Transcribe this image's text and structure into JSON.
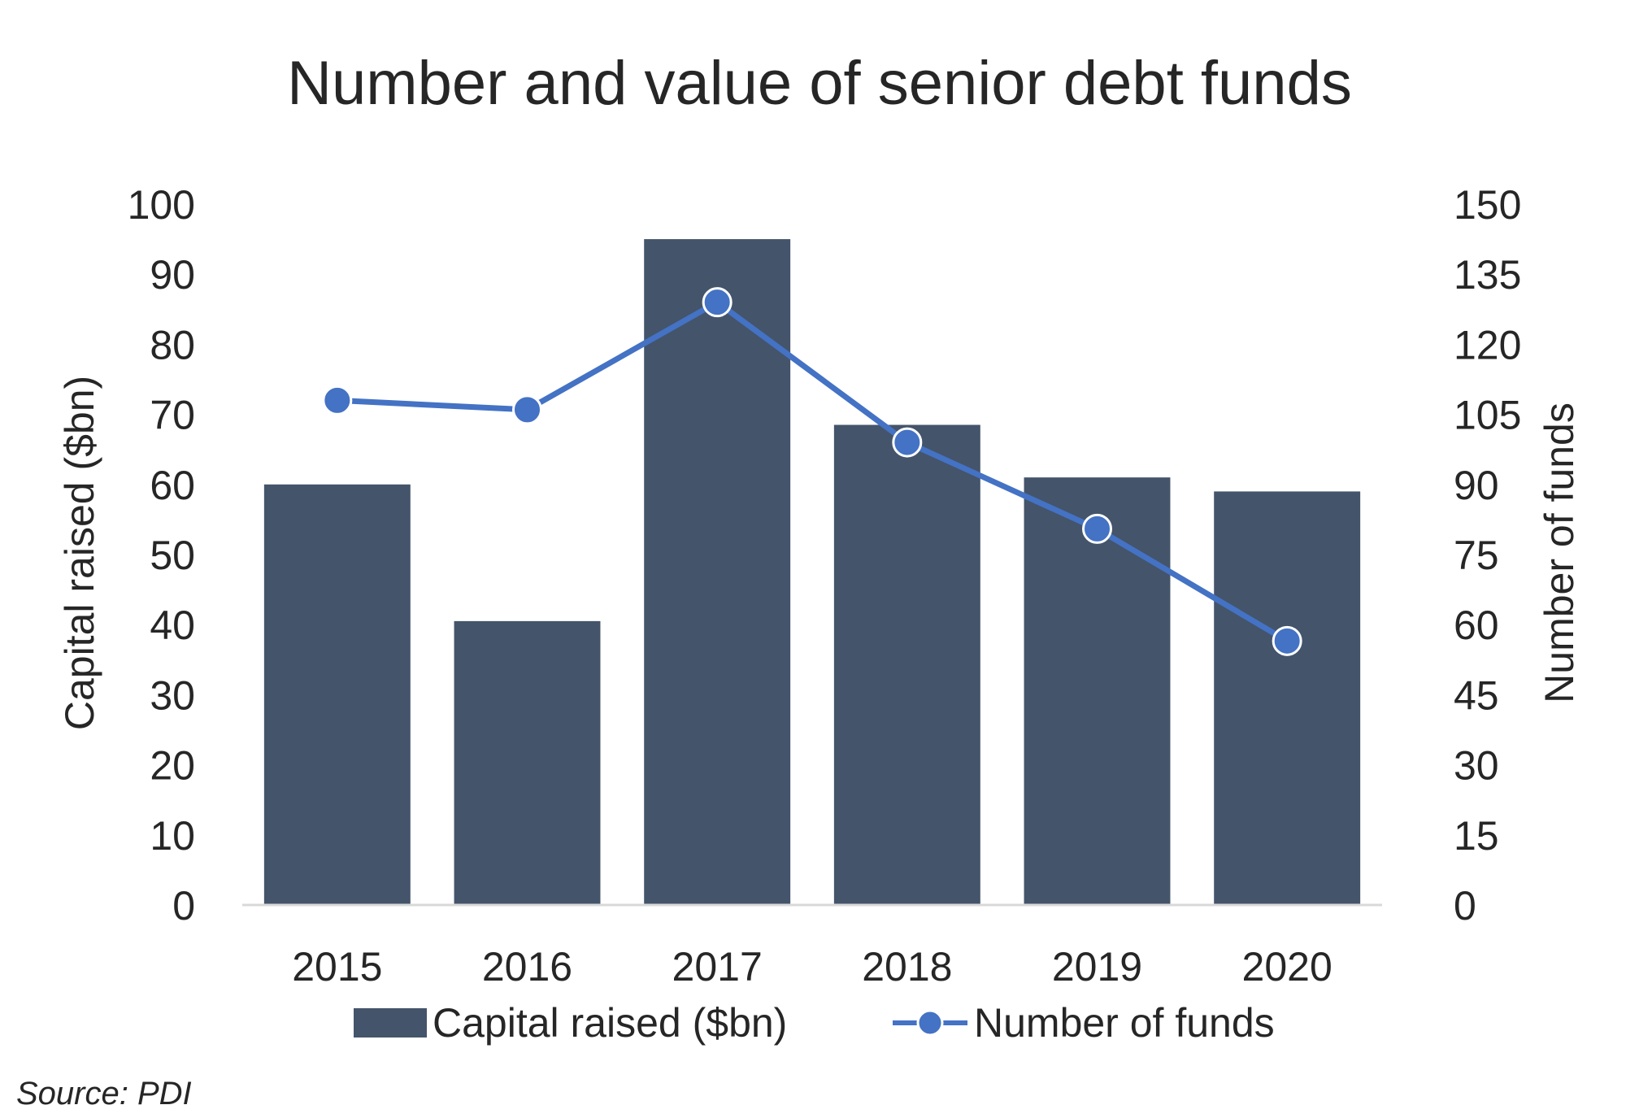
{
  "chart_data": {
    "type": "bar",
    "title": "Number and value of senior debt funds",
    "categories": [
      "2015",
      "2016",
      "2017",
      "2018",
      "2019",
      "2020"
    ],
    "series": [
      {
        "name": "Capital raised ($bn)",
        "type": "bar",
        "axis": "left",
        "values": [
          60,
          40.5,
          95,
          68.5,
          61,
          59
        ],
        "color": "#44546A"
      },
      {
        "name": "Number of funds",
        "type": "line",
        "axis": "right",
        "values": [
          108,
          106,
          129,
          99,
          80.5,
          56.5
        ],
        "color": "#4472C4"
      }
    ],
    "ylabel": "Capital raised ($bn)",
    "ylabel_right": "Number of funds",
    "ylim": [
      0,
      100
    ],
    "ylim_right": [
      0,
      150
    ],
    "yticks": [
      "0",
      "10",
      "20",
      "30",
      "40",
      "50",
      "60",
      "70",
      "80",
      "90",
      "100"
    ],
    "yticks_right": [
      "0",
      "15",
      "30",
      "45",
      "60",
      "75",
      "90",
      "105",
      "120",
      "135",
      "150"
    ],
    "grid": false,
    "legend": "bottom"
  },
  "source": "Source: PDI"
}
